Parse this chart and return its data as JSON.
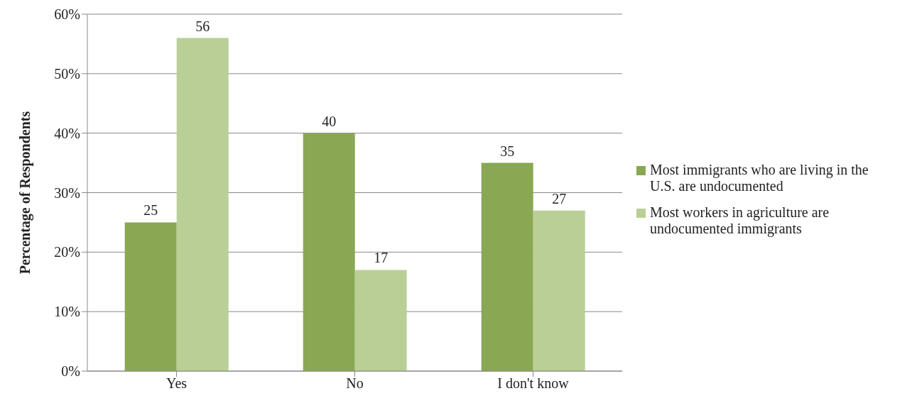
{
  "chart_data": {
    "type": "bar",
    "ylabel": "Percentage of Respondents",
    "categories": [
      "Yes",
      "No",
      "I don't know"
    ],
    "series": [
      {
        "name": "Most immigrants who are living in the U.S. are undocumented",
        "color": "#8aa753",
        "values": [
          25,
          40,
          35
        ]
      },
      {
        "name": "Most workers in agriculture are undocumented immigrants",
        "color": "#b9cf96",
        "values": [
          56,
          17,
          27
        ]
      }
    ],
    "ylim": [
      0,
      60
    ],
    "yticks": [
      {
        "value": 0,
        "label": "0%"
      },
      {
        "value": 10,
        "label": "10%"
      },
      {
        "value": 20,
        "label": "20%"
      },
      {
        "value": 30,
        "label": "30%"
      },
      {
        "value": 40,
        "label": "40%"
      },
      {
        "value": 50,
        "label": "50%"
      },
      {
        "value": 60,
        "label": "60%"
      }
    ],
    "grid": "y",
    "legend": "right",
    "data_labels": true
  }
}
